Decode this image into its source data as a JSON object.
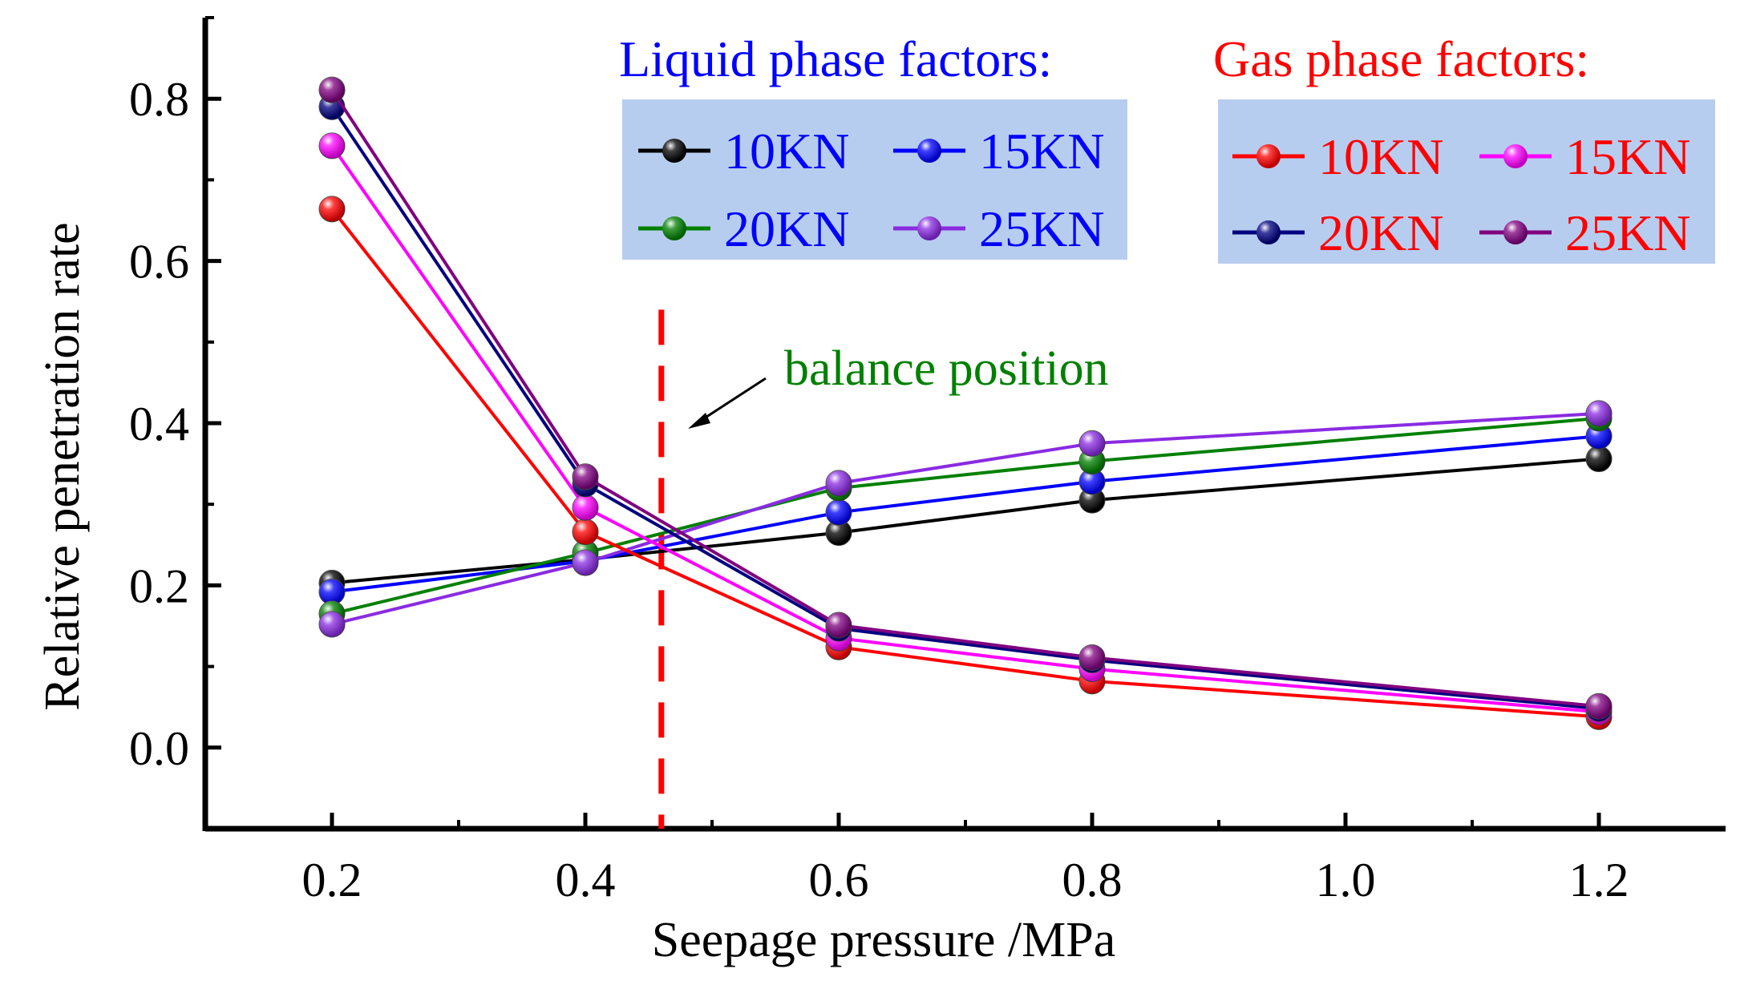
{
  "chart_data": {
    "type": "line",
    "xlabel": "Seepage pressure /MPa",
    "ylabel": "Relative penetration rate",
    "xlim": [
      0.1,
      1.3
    ],
    "ylim": [
      -0.1,
      0.9
    ],
    "x_ticks": [
      "0.2",
      "0.4",
      "0.6",
      "0.8",
      "1.0",
      "1.2"
    ],
    "y_ticks": [
      "0.0",
      "0.2",
      "0.4",
      "0.6",
      "0.8"
    ],
    "x": [
      0.2,
      0.4,
      0.6,
      0.8,
      1.2
    ],
    "legend_groups": [
      {
        "title": "Liquid phase factors:",
        "title_color": "#0000ff",
        "label_color": "#0000ff",
        "background": "#b7cdef",
        "series": [
          {
            "name": "10KN",
            "color": "#000000",
            "values": [
              0.203,
              0.232,
              0.265,
              0.305,
              0.356
            ]
          },
          {
            "name": "15KN",
            "color": "#0000ff",
            "values": [
              0.192,
              0.23,
              0.29,
              0.328,
              0.384
            ]
          },
          {
            "name": "20KN",
            "color": "#008000",
            "values": [
              0.165,
              0.24,
              0.32,
              0.353,
              0.406
            ]
          },
          {
            "name": "25KN",
            "color": "#8a2be2",
            "values": [
              0.152,
              0.228,
              0.326,
              0.375,
              0.412
            ]
          }
        ]
      },
      {
        "title": "Gas phase factors:",
        "title_color": "#ff0000",
        "label_color": "#ff0000",
        "background": "#b7cdef",
        "series": [
          {
            "name": "10KN",
            "color": "#ff0000",
            "values": [
              0.664,
              0.266,
              0.124,
              0.082,
              0.038
            ]
          },
          {
            "name": "15KN",
            "color": "#ff00ff",
            "values": [
              0.742,
              0.296,
              0.135,
              0.097,
              0.044
            ]
          },
          {
            "name": "20KN",
            "color": "#000080",
            "values": [
              0.79,
              0.325,
              0.147,
              0.108,
              0.048
            ]
          },
          {
            "name": "25KN",
            "color": "#800080",
            "values": [
              0.811,
              0.334,
              0.151,
              0.111,
              0.051
            ]
          }
        ]
      }
    ],
    "annotation": {
      "text": "balance position",
      "color": "#008000"
    },
    "balance_line": {
      "x": 0.46,
      "color": "#ff0000"
    }
  }
}
